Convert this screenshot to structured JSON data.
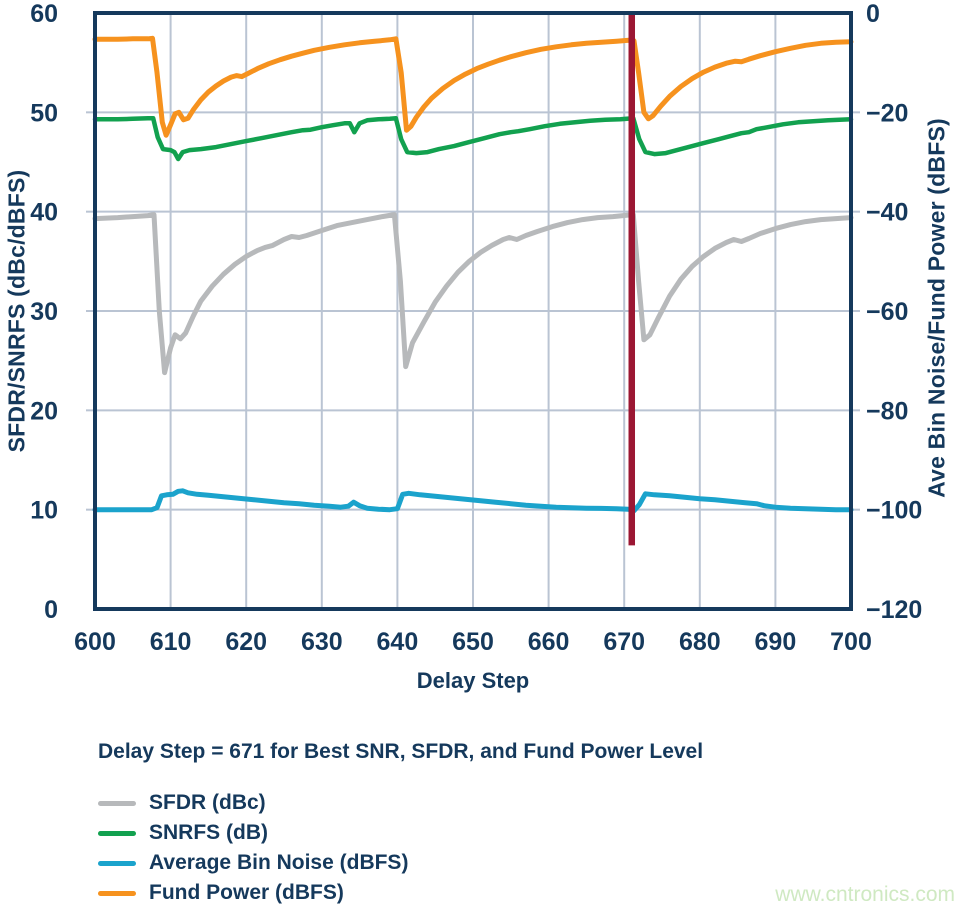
{
  "caption": "Delay Step = 671 for Best SNR, SFDR, and Fund Power Level",
  "watermark": "www.cntronics.com",
  "chart_data": {
    "type": "line",
    "title": "",
    "grid": true,
    "legend_position": "bottom-left",
    "x_axis": {
      "title": "Delay Step",
      "range": [
        600,
        700
      ],
      "tick_labels": [
        "600",
        "610",
        "620",
        "630",
        "640",
        "650",
        "660",
        "670",
        "680",
        "690",
        "700"
      ],
      "ticks": [
        600,
        610,
        620,
        630,
        640,
        650,
        660,
        670,
        680,
        690,
        700
      ]
    },
    "left_axis": {
      "title": "SFDR/SNRFS (dBc/dBFS)",
      "range": [
        0,
        60
      ],
      "tick_labels": [
        "0",
        "10",
        "20",
        "30",
        "40",
        "50",
        "60"
      ],
      "ticks": [
        0,
        10,
        20,
        30,
        40,
        50,
        60
      ]
    },
    "right_axis": {
      "title": "Ave Bin Noise/Fund Power (dBFS)",
      "range": [
        -120,
        0
      ],
      "tick_labels": [
        "0",
        "−20",
        "−40",
        "−60",
        "−80",
        "−100",
        "−120"
      ],
      "ticks": [
        0,
        -20,
        -40,
        -60,
        -80,
        -100,
        -120
      ]
    },
    "marker_line": {
      "x": 671,
      "y_top": 60,
      "y_bottom": 6.4,
      "axis": "left",
      "color": "#9b1733"
    },
    "colors": {
      "frame": "#15395c",
      "grid": "#bac4d3",
      "text": "#15395c",
      "watermark": "#cfe9c2"
    },
    "series": [
      {
        "name": "SFDR (dBc)",
        "color": "#b7b9bb",
        "axis": "left",
        "width": 5,
        "points": [
          [
            600,
            39.3
          ],
          [
            603,
            39.4
          ],
          [
            605,
            39.5
          ],
          [
            607,
            39.6
          ],
          [
            607.8,
            39.7
          ],
          [
            608.5,
            30
          ],
          [
            609.2,
            23.8
          ],
          [
            610,
            26.3
          ],
          [
            610.6,
            27.6
          ],
          [
            611.3,
            27.2
          ],
          [
            612,
            27.8
          ],
          [
            613,
            29.5
          ],
          [
            614,
            31
          ],
          [
            615.5,
            32.5
          ],
          [
            617,
            33.7
          ],
          [
            618.5,
            34.7
          ],
          [
            620,
            35.5
          ],
          [
            621.5,
            36.1
          ],
          [
            622.5,
            36.4
          ],
          [
            623.5,
            36.6
          ],
          [
            625,
            37.2
          ],
          [
            626,
            37.5
          ],
          [
            627,
            37.4
          ],
          [
            628,
            37.6
          ],
          [
            630,
            38.1
          ],
          [
            632,
            38.6
          ],
          [
            634,
            38.9
          ],
          [
            636,
            39.2
          ],
          [
            638,
            39.5
          ],
          [
            639.6,
            39.7
          ],
          [
            640.4,
            33
          ],
          [
            641.1,
            24.4
          ],
          [
            642,
            26.8
          ],
          [
            643.5,
            28.9
          ],
          [
            645,
            30.9
          ],
          [
            646.5,
            32.5
          ],
          [
            648,
            33.9
          ],
          [
            649.5,
            35
          ],
          [
            651,
            35.9
          ],
          [
            652.5,
            36.6
          ],
          [
            654,
            37.2
          ],
          [
            654.8,
            37.4
          ],
          [
            655.8,
            37.2
          ],
          [
            657,
            37.6
          ],
          [
            658.5,
            38
          ],
          [
            660.5,
            38.5
          ],
          [
            662.5,
            38.9
          ],
          [
            664.5,
            39.2
          ],
          [
            666.5,
            39.4
          ],
          [
            668.5,
            39.5
          ],
          [
            670.5,
            39.65
          ],
          [
            671.2,
            39.7
          ],
          [
            671.9,
            33
          ],
          [
            672.6,
            27.1
          ],
          [
            673.4,
            27.6
          ],
          [
            674.5,
            29.3
          ],
          [
            676,
            31.5
          ],
          [
            677.5,
            33.2
          ],
          [
            679,
            34.5
          ],
          [
            680.5,
            35.5
          ],
          [
            682,
            36.3
          ],
          [
            683.5,
            36.9
          ],
          [
            684.5,
            37.2
          ],
          [
            685.5,
            37.0
          ],
          [
            686.5,
            37.3
          ],
          [
            688,
            37.8
          ],
          [
            690,
            38.3
          ],
          [
            692,
            38.7
          ],
          [
            694,
            39.0
          ],
          [
            696,
            39.2
          ],
          [
            698,
            39.3
          ],
          [
            700,
            39.4
          ]
        ]
      },
      {
        "name": "SNRFS (dB)",
        "color": "#12a14f",
        "axis": "left",
        "width": 4.5,
        "points": [
          [
            600,
            49.3
          ],
          [
            603,
            49.3
          ],
          [
            605,
            49.35
          ],
          [
            607,
            49.4
          ],
          [
            607.7,
            49.4
          ],
          [
            608.3,
            47.5
          ],
          [
            609,
            46.3
          ],
          [
            610,
            46.2
          ],
          [
            610.5,
            46.0
          ],
          [
            611,
            45.3
          ],
          [
            611.6,
            46.0
          ],
          [
            612.5,
            46.2
          ],
          [
            614,
            46.3
          ],
          [
            616,
            46.5
          ],
          [
            618,
            46.8
          ],
          [
            620,
            47.1
          ],
          [
            622,
            47.4
          ],
          [
            624,
            47.7
          ],
          [
            626,
            48.0
          ],
          [
            627.5,
            48.2
          ],
          [
            628.5,
            48.25
          ],
          [
            630,
            48.5
          ],
          [
            631.5,
            48.7
          ],
          [
            633,
            48.9
          ],
          [
            633.7,
            48.9
          ],
          [
            634.3,
            48.0
          ],
          [
            635,
            48.9
          ],
          [
            636,
            49.2
          ],
          [
            637.5,
            49.3
          ],
          [
            639,
            49.35
          ],
          [
            639.8,
            49.4
          ],
          [
            640.5,
            47.3
          ],
          [
            641.3,
            46.0
          ],
          [
            642.5,
            45.9
          ],
          [
            644,
            46.0
          ],
          [
            645.5,
            46.3
          ],
          [
            647.5,
            46.6
          ],
          [
            649.5,
            47.0
          ],
          [
            651.5,
            47.4
          ],
          [
            653.5,
            47.8
          ],
          [
            655,
            48.0
          ],
          [
            656,
            48.1
          ],
          [
            657.5,
            48.3
          ],
          [
            659.5,
            48.6
          ],
          [
            661.5,
            48.85
          ],
          [
            663.5,
            49.0
          ],
          [
            665.5,
            49.15
          ],
          [
            667.5,
            49.25
          ],
          [
            669.5,
            49.3
          ],
          [
            671.2,
            49.4
          ],
          [
            672,
            47.3
          ],
          [
            672.8,
            46.0
          ],
          [
            674,
            45.8
          ],
          [
            675.5,
            45.9
          ],
          [
            677,
            46.2
          ],
          [
            678.5,
            46.5
          ],
          [
            680.5,
            46.9
          ],
          [
            682.5,
            47.3
          ],
          [
            684,
            47.6
          ],
          [
            685.5,
            47.9
          ],
          [
            686.5,
            48.0
          ],
          [
            687.5,
            48.3
          ],
          [
            689,
            48.5
          ],
          [
            691,
            48.8
          ],
          [
            693,
            49.0
          ],
          [
            695,
            49.1
          ],
          [
            697,
            49.2
          ],
          [
            700,
            49.3
          ]
        ]
      },
      {
        "name": "Average Bin Noise (dBFS)",
        "color": "#1ba3cc",
        "axis": "right",
        "width": 5,
        "points": [
          [
            600,
            -100
          ],
          [
            604,
            -100
          ],
          [
            607.5,
            -100
          ],
          [
            608.2,
            -99.6
          ],
          [
            608.8,
            -97.2
          ],
          [
            609.5,
            -97.0
          ],
          [
            610.3,
            -96.9
          ],
          [
            611,
            -96.3
          ],
          [
            611.6,
            -96.2
          ],
          [
            612.3,
            -96.6
          ],
          [
            613.5,
            -96.9
          ],
          [
            615,
            -97.1
          ],
          [
            617,
            -97.4
          ],
          [
            619,
            -97.7
          ],
          [
            621,
            -98.0
          ],
          [
            623,
            -98.3
          ],
          [
            625,
            -98.6
          ],
          [
            627,
            -98.8
          ],
          [
            629,
            -99.1
          ],
          [
            631,
            -99.3
          ],
          [
            632.5,
            -99.5
          ],
          [
            633.5,
            -99.3
          ],
          [
            634.2,
            -98.5
          ],
          [
            635,
            -99.2
          ],
          [
            636,
            -99.7
          ],
          [
            637.5,
            -99.9
          ],
          [
            639,
            -100
          ],
          [
            640,
            -99.8
          ],
          [
            640.7,
            -96.9
          ],
          [
            641.5,
            -96.7
          ],
          [
            643,
            -97.0
          ],
          [
            645,
            -97.3
          ],
          [
            647,
            -97.6
          ],
          [
            649,
            -97.9
          ],
          [
            651,
            -98.2
          ],
          [
            653,
            -98.5
          ],
          [
            655,
            -98.8
          ],
          [
            657,
            -99.1
          ],
          [
            659,
            -99.3
          ],
          [
            661,
            -99.5
          ],
          [
            663,
            -99.6
          ],
          [
            665,
            -99.7
          ],
          [
            667,
            -99.75
          ],
          [
            669,
            -99.8
          ],
          [
            670.5,
            -99.9
          ],
          [
            671.3,
            -100.2
          ],
          [
            672,
            -99
          ],
          [
            672.8,
            -96.8
          ],
          [
            674,
            -97.0
          ],
          [
            676,
            -97.2
          ],
          [
            678,
            -97.5
          ],
          [
            680,
            -97.8
          ],
          [
            682,
            -98.0
          ],
          [
            684,
            -98.3
          ],
          [
            686,
            -98.6
          ],
          [
            687.5,
            -98.8
          ],
          [
            688.5,
            -99.2
          ],
          [
            690,
            -99.5
          ],
          [
            692,
            -99.7
          ],
          [
            694,
            -99.8
          ],
          [
            696,
            -99.9
          ],
          [
            698,
            -100
          ],
          [
            700,
            -100
          ]
        ]
      },
      {
        "name": "Fund Power (dBFS)",
        "color": "#f6921e",
        "axis": "right",
        "width": 5,
        "points": [
          [
            600,
            -5.3
          ],
          [
            603,
            -5.3
          ],
          [
            605,
            -5.2
          ],
          [
            607,
            -5.2
          ],
          [
            607.6,
            -5.1
          ],
          [
            608.2,
            -12
          ],
          [
            608.9,
            -22
          ],
          [
            609.4,
            -24.6
          ],
          [
            610,
            -22.5
          ],
          [
            610.6,
            -20.3
          ],
          [
            611.1,
            -20.0
          ],
          [
            611.7,
            -21.5
          ],
          [
            612.3,
            -21.2
          ],
          [
            613,
            -19.5
          ],
          [
            614,
            -17.5
          ],
          [
            615,
            -15.9
          ],
          [
            616,
            -14.7
          ],
          [
            617,
            -13.7
          ],
          [
            618,
            -12.9
          ],
          [
            618.7,
            -12.6
          ],
          [
            619.4,
            -12.8
          ],
          [
            620.2,
            -12.2
          ],
          [
            621.5,
            -11.2
          ],
          [
            623,
            -10.2
          ],
          [
            624.5,
            -9.4
          ],
          [
            626,
            -8.7
          ],
          [
            627.5,
            -8.1
          ],
          [
            629,
            -7.5
          ],
          [
            631,
            -6.9
          ],
          [
            633,
            -6.4
          ],
          [
            635,
            -6.0
          ],
          [
            637,
            -5.7
          ],
          [
            639,
            -5.4
          ],
          [
            639.8,
            -5.2
          ],
          [
            640.5,
            -12
          ],
          [
            641.2,
            -23.6
          ],
          [
            641.8,
            -22.8
          ],
          [
            642.5,
            -21
          ],
          [
            643.5,
            -18.9
          ],
          [
            644.5,
            -17.2
          ],
          [
            646,
            -15.2
          ],
          [
            647.5,
            -13.6
          ],
          [
            649,
            -12.3
          ],
          [
            650.5,
            -11.2
          ],
          [
            652,
            -10.3
          ],
          [
            653.5,
            -9.5
          ],
          [
            655,
            -8.8
          ],
          [
            657,
            -8.0
          ],
          [
            659,
            -7.3
          ],
          [
            661,
            -6.8
          ],
          [
            663,
            -6.4
          ],
          [
            665,
            -6.1
          ],
          [
            667,
            -5.9
          ],
          [
            669,
            -5.7
          ],
          [
            670.6,
            -5.5
          ],
          [
            671.3,
            -5.6
          ],
          [
            671.9,
            -12
          ],
          [
            672.6,
            -20
          ],
          [
            673.2,
            -21.3
          ],
          [
            673.8,
            -20.7
          ],
          [
            674.8,
            -18.8
          ],
          [
            676,
            -16.8
          ],
          [
            677.5,
            -14.8
          ],
          [
            679,
            -13.2
          ],
          [
            680.5,
            -11.9
          ],
          [
            682,
            -10.9
          ],
          [
            683.5,
            -10.1
          ],
          [
            684.7,
            -9.7
          ],
          [
            685.5,
            -9.8
          ],
          [
            686.5,
            -9.3
          ],
          [
            688,
            -8.6
          ],
          [
            690,
            -7.8
          ],
          [
            692,
            -7.1
          ],
          [
            694,
            -6.5
          ],
          [
            696,
            -6.1
          ],
          [
            698,
            -5.9
          ],
          [
            700,
            -5.8
          ]
        ]
      }
    ]
  }
}
